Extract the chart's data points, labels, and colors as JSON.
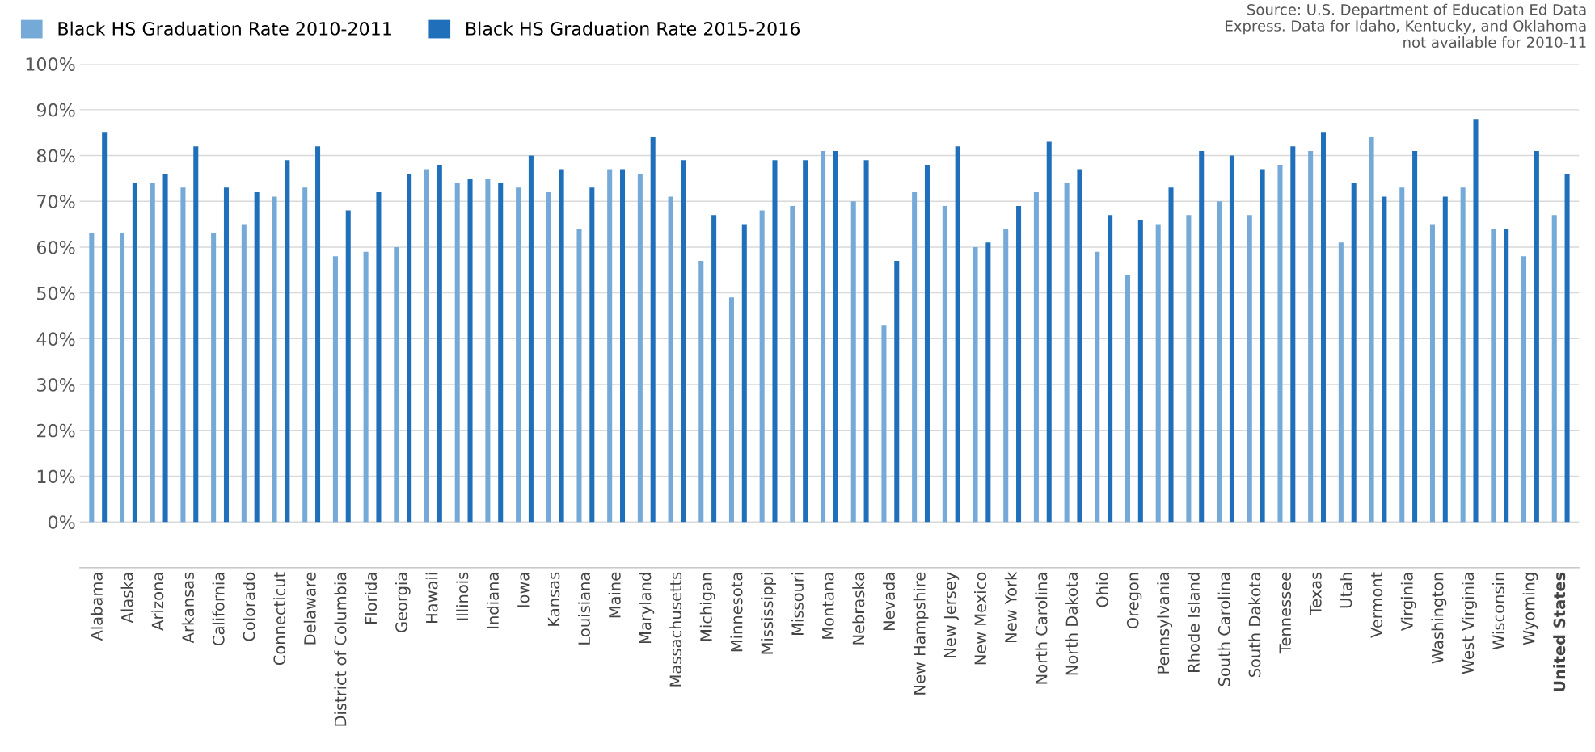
{
  "chart_data": {
    "type": "bar",
    "categories": [
      "Alabama",
      "Alaska",
      "Arizona",
      "Arkansas",
      "California",
      "Colorado",
      "Connecticut",
      "Delaware",
      "District of Columbia",
      "Florida",
      "Georgia",
      "Hawaii",
      "Illinois",
      "Indiana",
      "Iowa",
      "Kansas",
      "Louisiana",
      "Maine",
      "Maryland",
      "Massachusetts",
      "Michigan",
      "Minnesota",
      "Mississippi",
      "Missouri",
      "Montana",
      "Nebraska",
      "Nevada",
      "New Hampshire",
      "New Jersey",
      "New Mexico",
      "New York",
      "North Carolina",
      "North Dakota",
      "Ohio",
      "Oregon",
      "Pennsylvania",
      "Rhode Island",
      "South Carolina",
      "South Dakota",
      "Tennessee",
      "Texas",
      "Utah",
      "Vermont",
      "Virginia",
      "Washington",
      "West Virginia",
      "Wisconsin",
      "Wyoming",
      "United States"
    ],
    "series": [
      {
        "name": "Black HS Graduation Rate 2010-2011",
        "color": "#74a9d8",
        "values": [
          63,
          63,
          74,
          73,
          63,
          65,
          71,
          73,
          58,
          59,
          60,
          77,
          74,
          75,
          73,
          72,
          64,
          77,
          76,
          71,
          57,
          49,
          68,
          69,
          81,
          70,
          43,
          72,
          69,
          60,
          64,
          72,
          74,
          59,
          54,
          65,
          67,
          70,
          67,
          78,
          81,
          61,
          84,
          73,
          65,
          73,
          64,
          58,
          67
        ]
      },
      {
        "name": "Black HS Graduation Rate 2015-2016",
        "color": "#1f6fba",
        "values": [
          85,
          74,
          76,
          82,
          73,
          72,
          79,
          82,
          68,
          72,
          76,
          78,
          75,
          74,
          80,
          77,
          73,
          77,
          84,
          79,
          67,
          65,
          79,
          79,
          81,
          79,
          57,
          78,
          82,
          61,
          69,
          83,
          77,
          67,
          66,
          73,
          81,
          80,
          77,
          82,
          85,
          74,
          71,
          81,
          71,
          88,
          64,
          81,
          76
        ]
      }
    ],
    "ylim": [
      -10,
      100
    ],
    "yticks": [
      {
        "value": -10,
        "label": null
      },
      {
        "value": 0,
        "label": "0%"
      },
      {
        "value": 10,
        "label": "10%"
      },
      {
        "value": 20,
        "label": "20%"
      },
      {
        "value": 30,
        "label": "30%"
      },
      {
        "value": 40,
        "label": "40%"
      },
      {
        "value": 50,
        "label": "50%"
      },
      {
        "value": 60,
        "label": "60%"
      },
      {
        "value": 70,
        "label": "70%"
      },
      {
        "value": 80,
        "label": "80%"
      },
      {
        "value": 90,
        "label": "90%"
      },
      {
        "value": 100,
        "label": "100%"
      }
    ],
    "grid": "y",
    "legend": "top left",
    "annotations": [
      "Source: U.S. Department of Education Ed Data Express. Data for Idaho, Kentucky, and Oklahoma not available for 2010-11"
    ]
  }
}
